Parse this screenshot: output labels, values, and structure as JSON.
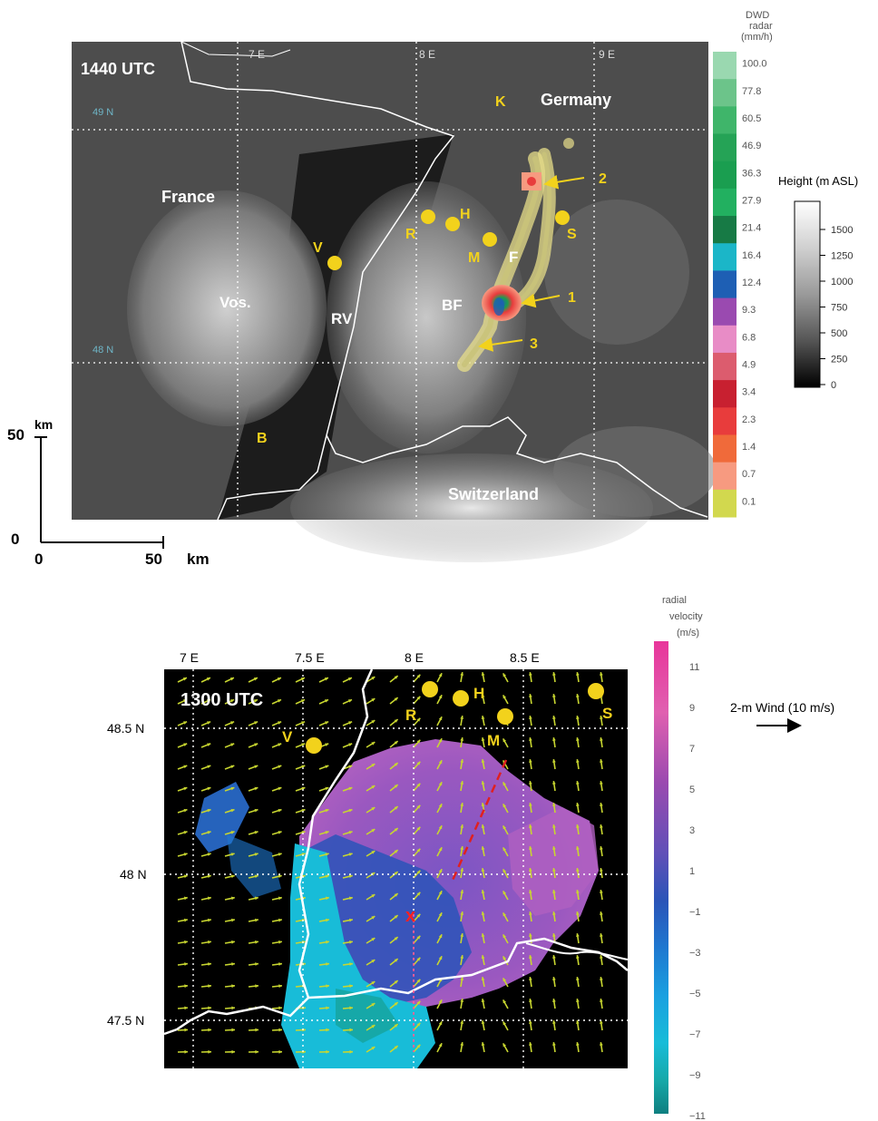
{
  "top_panel": {
    "time_label": "1440 UTC",
    "lon_labels": [
      "7 E",
      "8 E",
      "9 E"
    ],
    "lat_labels": [
      "49 N",
      "48 N"
    ],
    "regions": {
      "france": "France",
      "germany": "Germany",
      "switzerland": "Switzerland",
      "vosges": "Vos.",
      "rhine_valley": "RV",
      "black_forest": "BF",
      "f_label": "F"
    },
    "stations": [
      {
        "id": "K",
        "label": "K"
      },
      {
        "id": "R",
        "label": "R"
      },
      {
        "id": "H",
        "label": "H"
      },
      {
        "id": "M",
        "label": "M"
      },
      {
        "id": "S",
        "label": "S"
      },
      {
        "id": "V",
        "label": "V"
      },
      {
        "id": "B",
        "label": "B"
      }
    ],
    "cell_labels": [
      "1",
      "2",
      "3"
    ],
    "scale_bar": {
      "y_top": "50",
      "y_zero": "0",
      "x_zero": "0",
      "x_end": "50",
      "unit": "km"
    },
    "radar_colorbar": {
      "title_line1": "DWD",
      "title_line2": "radar",
      "title_line3": "(mm/h)",
      "levels": [
        "100.0",
        "77.8",
        "60.5",
        "46.9",
        "36.3",
        "27.9",
        "21.4",
        "16.4",
        "12.4",
        "9.3",
        "6.8",
        "4.9",
        "3.4",
        "2.3",
        "1.4",
        "0.7",
        "0.1"
      ],
      "colors": [
        "#9ad8b0",
        "#6cc48a",
        "#3fb56a",
        "#25a356",
        "#1a9e50",
        "#22b060",
        "#177a45",
        "#1bb6c8",
        "#1e5fb4",
        "#9a4ab0",
        "#e88cc6",
        "#dc5c6e",
        "#c82030",
        "#e83c3c",
        "#f06a3a",
        "#f79a80",
        "#d2d84e"
      ]
    },
    "height_colorbar": {
      "title": "Height (m ASL)",
      "levels": [
        "1500",
        "1250",
        "1000",
        "750",
        "500",
        "250",
        "0"
      ]
    }
  },
  "bottom_panel": {
    "time_label": "1300 UTC",
    "lon_labels": [
      "7 E",
      "7.5 E",
      "8 E",
      "8.5 E"
    ],
    "lat_labels": [
      "48.5 N",
      "48 N",
      "47.5 N"
    ],
    "stations": [
      {
        "id": "R",
        "label": "R"
      },
      {
        "id": "H",
        "label": "H"
      },
      {
        "id": "M",
        "label": "M"
      },
      {
        "id": "S",
        "label": "S"
      },
      {
        "id": "V",
        "label": "V"
      }
    ],
    "radar_site_marker": "x",
    "velocity_colorbar": {
      "title_line1": "radial",
      "title_line2": "velocity",
      "title_line3": "(m/s)",
      "levels": [
        "11",
        "9",
        "7",
        "5",
        "3",
        "1",
        "−1",
        "−3",
        "−5",
        "−7",
        "−9",
        "−11"
      ]
    },
    "wind_legend": "2-m Wind (10 m/s)"
  }
}
